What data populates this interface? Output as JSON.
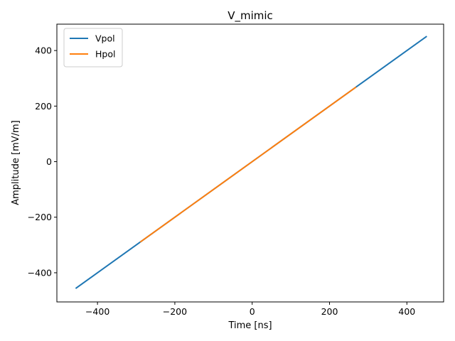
{
  "chart_data": {
    "type": "line",
    "title": "V_mimic",
    "xlabel": "Time [ns]",
    "ylabel": "Amplitude [mV/m]",
    "xlim": [
      -505,
      495
    ],
    "ylim": [
      -505,
      495
    ],
    "xticks": [
      -400,
      -200,
      0,
      200,
      400
    ],
    "yticks": [
      -400,
      -200,
      0,
      200,
      400
    ],
    "xtick_labels": [
      "−400",
      "−200",
      "0",
      "200",
      "400"
    ],
    "ytick_labels": [
      "−400",
      "−200",
      "0",
      "200",
      "400"
    ],
    "grid": false,
    "legend_position": "upper-left",
    "series": [
      {
        "name": "Vpol",
        "color": "#1f77b4",
        "x": [
          -455,
          450
        ],
        "y": [
          -455,
          450
        ]
      },
      {
        "name": "Hpol",
        "color": "#ff7f0e",
        "x": [
          -288,
          267
        ],
        "y": [
          -288,
          267
        ]
      }
    ]
  }
}
